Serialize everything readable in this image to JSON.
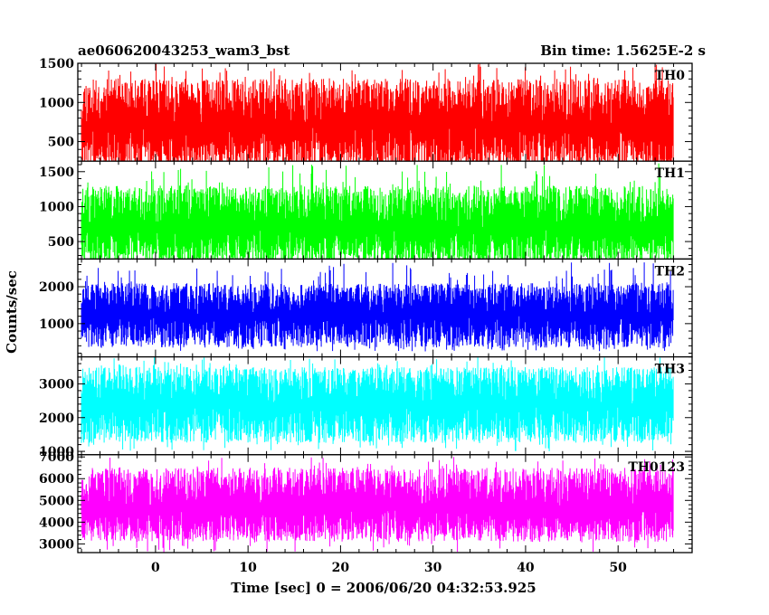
{
  "chart_data": {
    "type": "line",
    "title_left": "ae060620043253_wam3_bst",
    "title_right": "Bin time: 1.5625E-2 s",
    "xlabel": "Time [sec] 0 = 2006/06/20 04:32:53.925",
    "ylabel": "Counts/sec",
    "xlim": [
      -8.4,
      58.0
    ],
    "x_data_range": [
      -8.0,
      56.0
    ],
    "x_ticks": [
      0,
      10,
      20,
      30,
      40,
      50
    ],
    "x_minor_step": 2,
    "panels": [
      {
        "name": "TH0",
        "color": "#ff0000",
        "ylim": [
          250,
          1500
        ],
        "ticks": [
          500,
          1000,
          1500
        ],
        "minor_step": 100,
        "base": 700,
        "low": 150,
        "high": 1300,
        "peak": 1500,
        "floor": 70,
        "seed": 11
      },
      {
        "name": "TH1",
        "color": "#00ff00",
        "ylim": [
          250,
          1650
        ],
        "ticks": [
          500,
          1000,
          1500
        ],
        "minor_step": 100,
        "base": 700,
        "low": 180,
        "high": 1300,
        "peak": 1620,
        "floor": 90,
        "seed": 23
      },
      {
        "name": "TH2",
        "color": "#0000ff",
        "ylim": [
          100,
          2750
        ],
        "ticks": [
          1000,
          2000
        ],
        "minor_step": 200,
        "base": 1250,
        "low": 350,
        "high": 2100,
        "peak": 2700,
        "floor": 250,
        "seed": 37
      },
      {
        "name": "TH3",
        "color": "#00ffff",
        "ylim": [
          900,
          3800
        ],
        "ticks": [
          1000,
          2000,
          3000
        ],
        "minor_step": 200,
        "base": 2400,
        "low": 1250,
        "high": 3500,
        "peak": 3800,
        "floor": 1000,
        "seed": 41
      },
      {
        "name": "TH0123",
        "color": "#ff00ff",
        "ylim": [
          2600,
          7100
        ],
        "ticks": [
          3000,
          4000,
          5000,
          6000,
          7000
        ],
        "minor_step": 200,
        "base": 4600,
        "low": 3100,
        "high": 6500,
        "peak": 7000,
        "floor": 2600,
        "seed": 53
      }
    ]
  }
}
